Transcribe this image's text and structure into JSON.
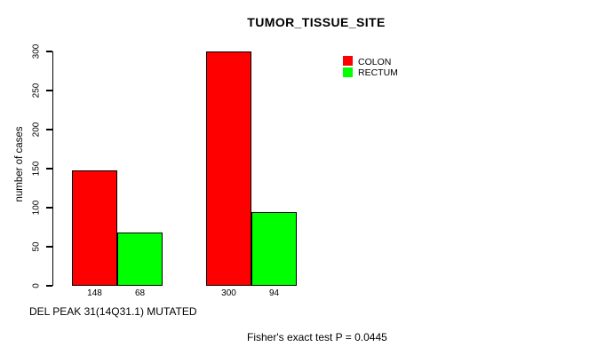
{
  "chart_data": {
    "type": "bar",
    "title": "TUMOR_TISSUE_SITE",
    "ylabel": "number of cases",
    "xlabel": "DEL PEAK 31(14Q31.1) MUTATED",
    "annotation": "Fisher's exact test P = 0.0445",
    "ylim": [
      0,
      300
    ],
    "yticks": [
      0,
      50,
      100,
      150,
      200,
      250,
      300
    ],
    "grid": false,
    "legend_position": "top-right",
    "series": [
      {
        "name": "COLON",
        "color": "#ff0000",
        "values": [
          148,
          300
        ]
      },
      {
        "name": "RECTUM",
        "color": "#00ff00",
        "values": [
          68,
          94
        ]
      }
    ],
    "bar_labels": [
      "148",
      "68",
      "300",
      "94"
    ],
    "bar_border_color": "#000000",
    "background": "#ffffff",
    "text_color": "#000000"
  }
}
